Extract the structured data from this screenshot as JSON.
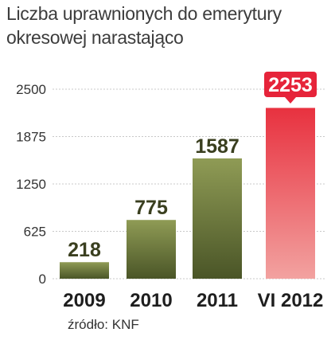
{
  "title_line1": "Liczba uprawnionych do emerytury",
  "title_line2": "okresowej narastająco",
  "source": "źródło: KNF",
  "colors": {
    "bar_olive_top": "#8f9b55",
    "bar_olive_bottom": "#4a5527",
    "bar_red_top": "#e8313f",
    "bar_red_bottom": "#f2a2a0",
    "label_red_bg": "#e6243a",
    "label_text": "#3a3f1f",
    "axis_text": "#333333",
    "grid": "#c8c8c8"
  },
  "chart_data": {
    "type": "bar",
    "categories": [
      "2009",
      "2010",
      "2011",
      "VI 2012"
    ],
    "values": [
      218,
      775,
      1587,
      2253
    ],
    "value_labels": [
      "218",
      "775",
      "1587",
      "2253"
    ],
    "highlight_index": 3,
    "yticks": [
      0,
      625,
      1250,
      1875,
      2500
    ],
    "ylim": [
      0,
      2500
    ],
    "grid": true,
    "title": "Liczba uprawnionych do emerytury okresowej narastająco",
    "xlabel": "",
    "ylabel": ""
  }
}
